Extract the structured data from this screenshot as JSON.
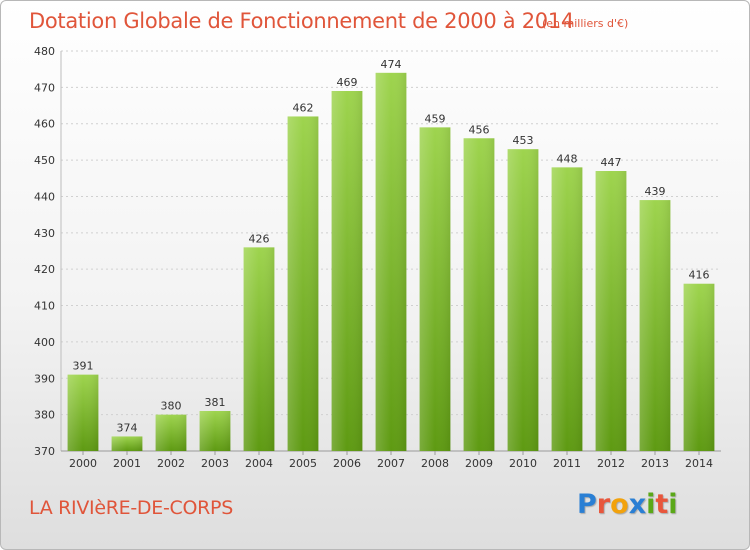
{
  "header": {
    "title": "Dotation Globale de Fonctionnement de 2000 à 2014",
    "unit": "(en milliers d'€)"
  },
  "footer": {
    "city": "LA RIVIèRE-DE-CORPS",
    "logo": [
      "P",
      "r",
      "o",
      "x",
      "i",
      "t",
      "i"
    ]
  },
  "colors": {
    "title": "#e0553a",
    "bar_light": "#9ed44e",
    "bar_dark": "#5e9a12",
    "grid": "#d0d0d0",
    "axis_text": "#333333",
    "logo": [
      "#2a7fd4",
      "#e8563c",
      "#f2a20c",
      "#2a7fd4",
      "#5aa818",
      "#e8563c",
      "#5aa818"
    ]
  },
  "chart_data": {
    "type": "bar",
    "categories": [
      "2000",
      "2001",
      "2002",
      "2003",
      "2004",
      "2005",
      "2006",
      "2007",
      "2008",
      "2009",
      "2010",
      "2011",
      "2012",
      "2013",
      "2014"
    ],
    "values": [
      391,
      374,
      380,
      381,
      426,
      462,
      469,
      474,
      459,
      456,
      453,
      448,
      447,
      439,
      416
    ],
    "ylim": [
      370,
      480
    ],
    "yticks": [
      370,
      380,
      390,
      400,
      410,
      420,
      430,
      440,
      450,
      460,
      470,
      480
    ],
    "grid": true
  }
}
